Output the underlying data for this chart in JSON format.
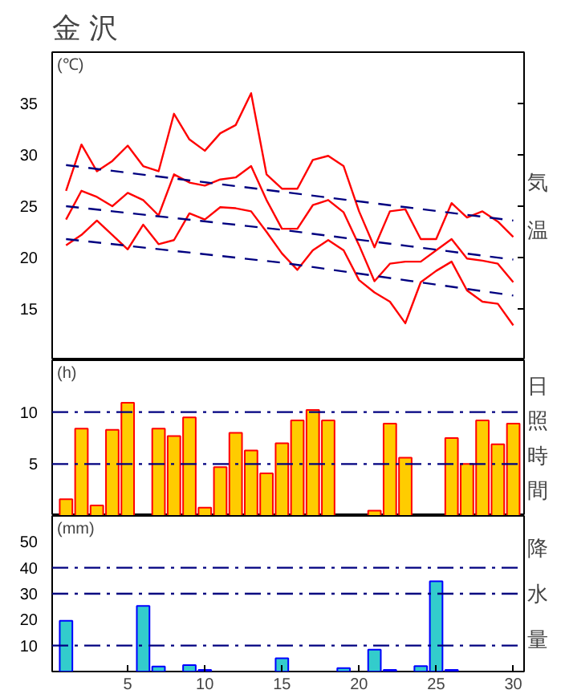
{
  "chart_data": [
    {
      "type": "line",
      "title": "金 沢",
      "ylabel": "気温",
      "annotations": [
        "(℃)"
      ],
      "xlim": [
        0.1,
        30.7
      ],
      "ylim": [
        10,
        40
      ],
      "yticks": [
        15,
        20,
        25,
        30,
        35
      ],
      "tick_labels": "y",
      "x": [
        1,
        2,
        3,
        4,
        5,
        6,
        7,
        8,
        9,
        10,
        11,
        12,
        13,
        14,
        15,
        16,
        17,
        18,
        19,
        20,
        21,
        22,
        23,
        24,
        25,
        26,
        27,
        28,
        29,
        30
      ],
      "series": [
        {
          "color": "#ff0000",
          "values": [
            26.5,
            31.0,
            28.4,
            29.4,
            30.9,
            28.9,
            28.4,
            34.0,
            31.5,
            30.4,
            32.1,
            32.9,
            36.0,
            28.1,
            26.7,
            26.7,
            29.5,
            29.9,
            28.9,
            24.5,
            21.0,
            24.5,
            24.7,
            21.8,
            21.8,
            25.3,
            23.9,
            24.5,
            23.5,
            22.0
          ]
        },
        {
          "color": "#ff0000",
          "values": [
            23.7,
            26.5,
            25.9,
            25.0,
            26.3,
            25.6,
            24.1,
            28.1,
            27.3,
            27.0,
            27.6,
            27.8,
            28.9,
            25.6,
            22.8,
            22.8,
            25.1,
            25.6,
            24.4,
            21.2,
            17.7,
            19.4,
            19.6,
            19.6,
            20.7,
            21.8,
            19.9,
            19.7,
            19.4,
            17.6
          ]
        },
        {
          "color": "#ff0000",
          "values": [
            21.2,
            22.2,
            23.6,
            22.2,
            20.8,
            23.2,
            21.3,
            21.7,
            24.3,
            23.7,
            24.9,
            24.8,
            24.5,
            22.5,
            20.4,
            18.8,
            20.7,
            21.7,
            20.7,
            17.8,
            16.6,
            15.7,
            13.6,
            17.6,
            18.7,
            19.6,
            16.8,
            15.7,
            15.5,
            13.4
          ]
        },
        {
          "color": "#000080",
          "line_style": "dashed",
          "x": [
            1,
            15,
            30
          ],
          "values": [
            29.0,
            26.4,
            23.6
          ]
        },
        {
          "color": "#000080",
          "line_style": "dashed",
          "x": [
            1,
            15,
            30
          ],
          "values": [
            25.0,
            22.7,
            19.8
          ]
        },
        {
          "color": "#000080",
          "line_style": "dashed",
          "x": [
            1,
            15,
            30
          ],
          "values": [
            21.8,
            19.5,
            16.3
          ]
        }
      ]
    },
    {
      "type": "bar",
      "ylabel": "日照時間",
      "annotations": [
        "(h)"
      ],
      "xlim": [
        0.1,
        30.7
      ],
      "ylim": [
        0,
        15
      ],
      "yticks": [
        5,
        10
      ],
      "tick_labels": "y",
      "ref_lines": [
        {
          "axis": "y",
          "value": 5,
          "color": "#000080",
          "line_style": "dashdot"
        },
        {
          "axis": "y",
          "value": 10,
          "color": "#000080",
          "line_style": "dashdot"
        }
      ],
      "x": [
        1,
        2,
        3,
        4,
        5,
        6,
        7,
        8,
        9,
        10,
        11,
        12,
        13,
        14,
        15,
        16,
        17,
        18,
        19,
        20,
        21,
        22,
        23,
        24,
        25,
        26,
        27,
        28,
        29,
        30
      ],
      "series": [
        {
          "color": "#ffcc00",
          "values": [
            1.6,
            8.4,
            1.0,
            8.3,
            10.9,
            0,
            8.4,
            7.7,
            9.5,
            0.8,
            4.7,
            8.0,
            6.3,
            4.1,
            7.0,
            9.2,
            10.2,
            9.2,
            0,
            0,
            0.5,
            8.9,
            5.6,
            0,
            0,
            7.5,
            5.0,
            9.2,
            6.9,
            8.9
          ]
        }
      ]
    },
    {
      "type": "bar",
      "ylabel": "降水量",
      "annotations": [
        "(mm)"
      ],
      "xlim": [
        0.1,
        30.7
      ],
      "ylim": [
        0,
        60
      ],
      "xticks": [
        5,
        10,
        15,
        20,
        25,
        30
      ],
      "yticks": [
        10,
        20,
        30,
        40,
        50
      ],
      "ref_lines": [
        {
          "axis": "y",
          "value": 10,
          "color": "#000080",
          "line_style": "dashdot"
        },
        {
          "axis": "y",
          "value": 30,
          "color": "#000080",
          "line_style": "dashdot"
        },
        {
          "axis": "y",
          "value": 40,
          "color": "#000080",
          "line_style": "dashdot"
        }
      ],
      "x": [
        1,
        2,
        3,
        4,
        5,
        6,
        7,
        8,
        9,
        10,
        11,
        12,
        13,
        14,
        15,
        16,
        17,
        18,
        19,
        20,
        21,
        22,
        23,
        24,
        25,
        26,
        27,
        28,
        29,
        30
      ],
      "series": [
        {
          "color": "#33cccc",
          "values": [
            19.6,
            0,
            0,
            0,
            0,
            25.3,
            1.9,
            0,
            2.5,
            0.6,
            0,
            0,
            0,
            0,
            5.1,
            0,
            0,
            0,
            1.3,
            0,
            8.4,
            0.6,
            0,
            2.1,
            34.8,
            0.6,
            0,
            0,
            0,
            0
          ]
        }
      ]
    }
  ]
}
